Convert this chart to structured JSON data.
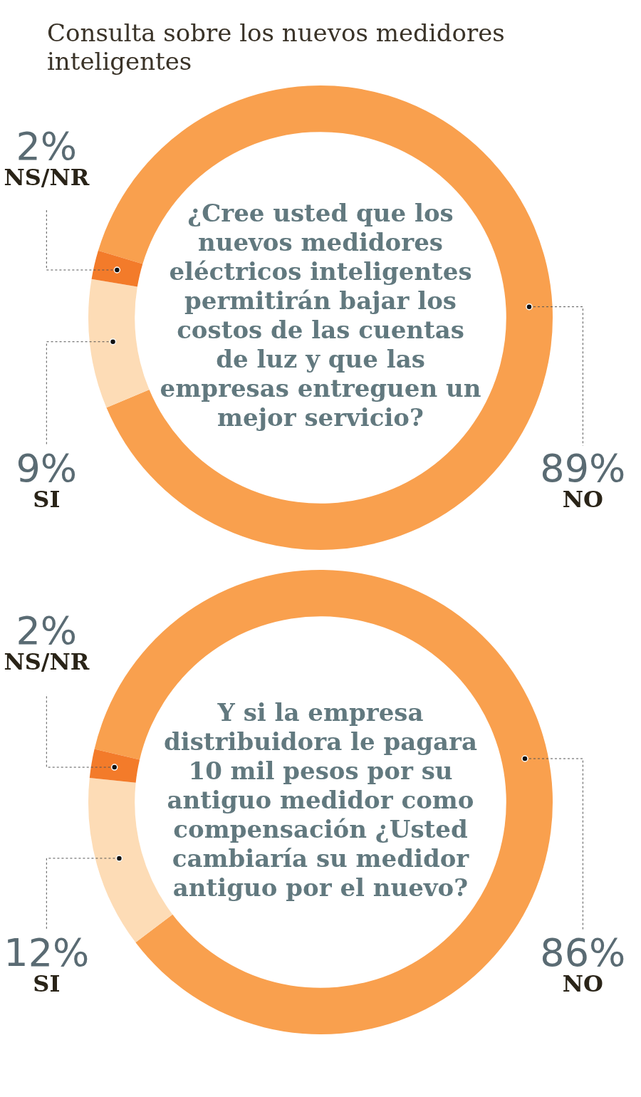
{
  "chart_data": [
    {
      "type": "donut",
      "title": "Consulta sobre los nuevos medidores inteligentes",
      "categories": [
        "NO",
        "SI",
        "NS/NR"
      ],
      "values": [
        89,
        9,
        2
      ],
      "colors": [
        "#f9a04e",
        "#fddcb6",
        "#f37b2a"
      ],
      "value_labels": [
        "89%",
        "9%",
        "2%"
      ],
      "annotations": [
        "¿Cree usted que los nuevos medidores eléctricos inteligentes permitirán bajar los costos de las cuentas de luz y que las empresas entreguen un mejor servicio?"
      ],
      "legend": false
    },
    {
      "type": "donut",
      "categories": [
        "NO",
        "SI",
        "NS/NR"
      ],
      "values": [
        86,
        12,
        2
      ],
      "colors": [
        "#f9a04e",
        "#fddcb6",
        "#f37b2a"
      ],
      "value_labels": [
        "86%",
        "12%",
        "2%"
      ],
      "annotations": [
        "Y si la empresa distribuidora le pagara 10 mil pesos por su antiguo medidor como compensación ¿Usted cambiaría su medidor antiguo por el nuevo?"
      ],
      "legend": false
    }
  ]
}
